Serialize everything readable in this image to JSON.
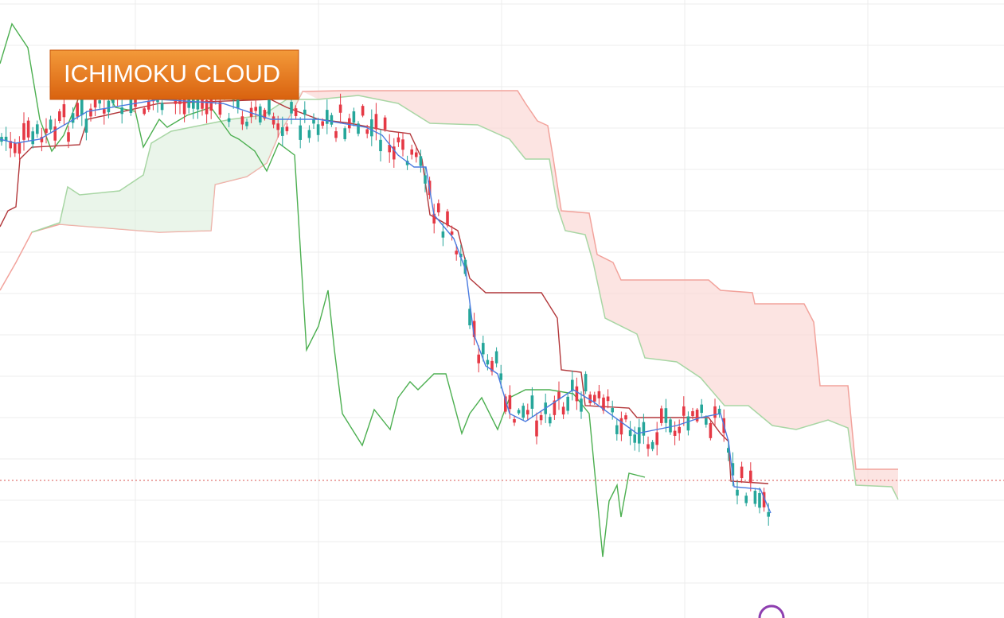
{
  "badge": {
    "title": "ICHIMOKU CLOUD"
  }
}
